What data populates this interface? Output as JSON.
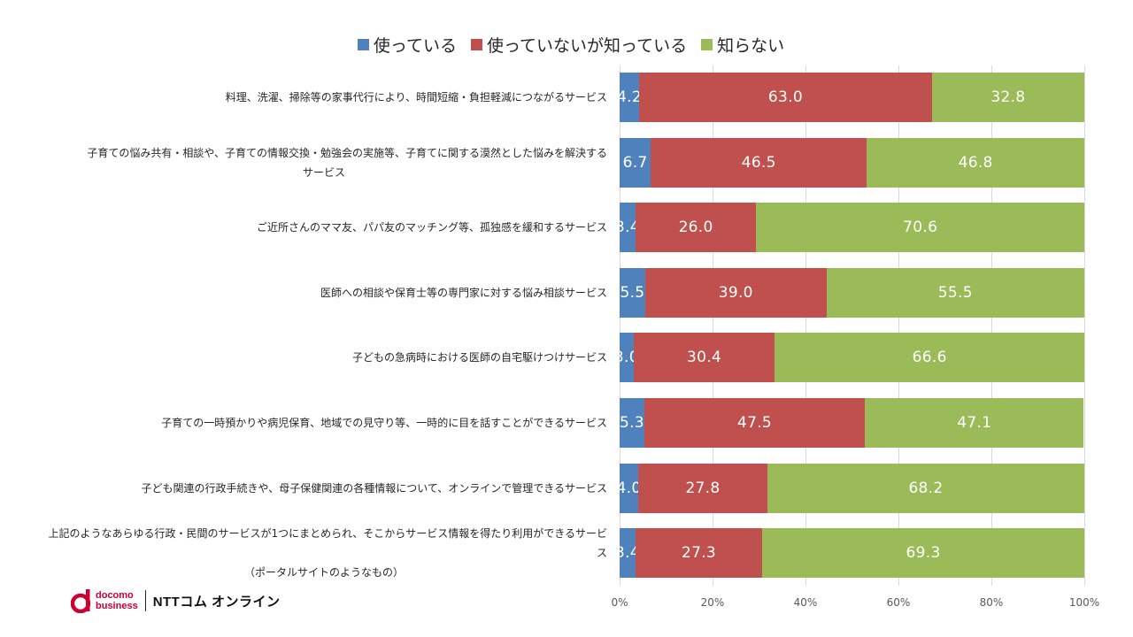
{
  "legend": [
    {
      "label": "使っている",
      "color": "#4f81bd"
    },
    {
      "label": "使っていないが知っている",
      "color": "#c0504d"
    },
    {
      "label": "知らない",
      "color": "#9bbb59"
    }
  ],
  "chart_data": {
    "type": "bar",
    "orientation": "horizontal",
    "stacked": true,
    "title": "",
    "xlabel": "",
    "ylabel": "",
    "xlim": [
      0,
      100
    ],
    "x_ticks": [
      "0%",
      "20%",
      "40%",
      "60%",
      "80%",
      "100%"
    ],
    "grid": true,
    "legend_position": "top",
    "categories": [
      [
        "料理、洗濯、掃除等の家事代行により、時間短縮・負担軽減につながるサービス"
      ],
      [
        "子育ての悩み共有・相談や、子育ての情報交換・勉強会の実施等、子育てに関する漠然とした悩みを解決する",
        "サービス"
      ],
      [
        "ご近所さんのママ友、パパ友のマッチング等、孤独感を緩和するサービス"
      ],
      [
        "医師への相談や保育士等の専門家に対する悩み相談サービス"
      ],
      [
        "子どもの急病時における医師の自宅駆けつけサービス"
      ],
      [
        "子育ての一時預かりや病児保育、地域での見守り等、一時的に目を話すことができるサービス"
      ],
      [
        "子ども関連の行政手続きや、母子保健関連の各種情報について、オンラインで管理できるサービス"
      ],
      [
        "上記のようなあらゆる行政・民間のサービスが1つにまとめられ、そこからサービス情報を得たり利用ができるサービス",
        "（ポータルサイトのようなもの）"
      ]
    ],
    "series": [
      {
        "name": "使っている",
        "color": "#4f81bd",
        "values": [
          4.2,
          6.7,
          3.4,
          5.5,
          3.0,
          5.3,
          4.0,
          3.4
        ],
        "labels": [
          "4.2",
          "6.7",
          "3.4",
          "5.5",
          "3.0",
          "5.3",
          "4.0",
          "3.4"
        ]
      },
      {
        "name": "使っていないが知っている",
        "color": "#c0504d",
        "values": [
          63.0,
          46.5,
          26.0,
          39.0,
          30.4,
          47.5,
          27.8,
          27.3
        ],
        "labels": [
          "63.0",
          "46.5",
          "26.0",
          "39.0",
          "30.4",
          "47.5",
          "27.8",
          "27.3"
        ]
      },
      {
        "name": "知らない",
        "color": "#9bbb59",
        "values": [
          32.8,
          46.8,
          70.6,
          55.5,
          66.6,
          47.1,
          68.2,
          69.3
        ],
        "labels": [
          "32.8",
          "46.8",
          "70.6",
          "55.5",
          "66.6",
          "47.1",
          "68.2",
          "69.3"
        ]
      }
    ]
  },
  "logo": {
    "line1": "docomo",
    "line2": "business",
    "text": "NTTコム オンライン",
    "mark_color": "#cc0033"
  }
}
